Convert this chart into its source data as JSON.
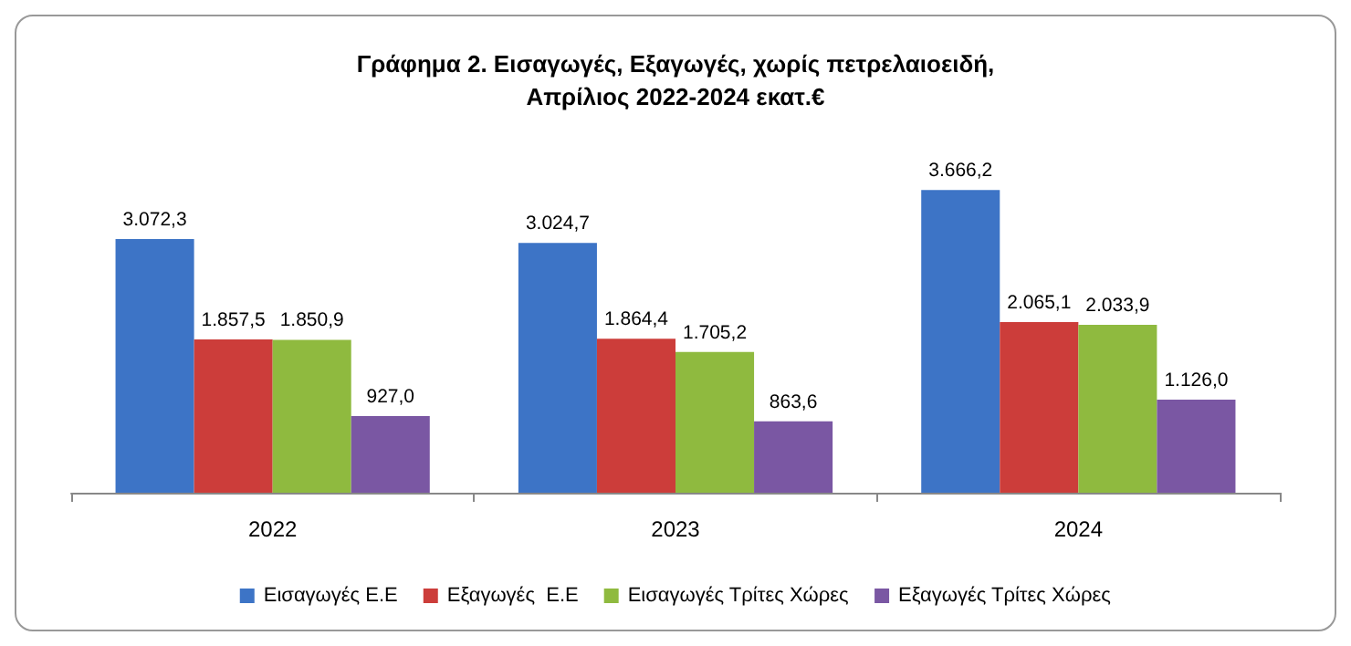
{
  "chart_data": {
    "type": "bar",
    "title": "Γράφημα 2. Εισαγωγές, Εξαγωγές, χωρίς πετρελαιοειδή,\nΑπρίλιος 2022-2024 εκατ.€",
    "categories": [
      "2022",
      "2023",
      "2024"
    ],
    "series": [
      {
        "name": "Εισαγωγές Ε.Ε",
        "color": "#3d74c6",
        "values": [
          3072.3,
          3024.7,
          3666.2
        ],
        "value_labels": [
          "3.072,3",
          "3.024,7",
          "3.666,2"
        ]
      },
      {
        "name": "Εξαγωγές  Ε.Ε",
        "color": "#cc3d3a",
        "values": [
          1857.5,
          1864.4,
          2065.1
        ],
        "value_labels": [
          "1.857,5",
          "1.864,4",
          "2.065,1"
        ]
      },
      {
        "name": "Εισαγωγές Τρίτες Χώρες",
        "color": "#8fba3f",
        "values": [
          1850.9,
          1705.2,
          2033.9
        ],
        "value_labels": [
          "1.850,9",
          "1.705,2",
          "2.033,9"
        ]
      },
      {
        "name": "Εξαγωγές Τρίτες Χώρες",
        "color": "#7a57a3",
        "values": [
          927.0,
          863.6,
          1126.0
        ],
        "value_labels": [
          "927,0",
          "863,6",
          "1.126,0"
        ]
      }
    ],
    "legend": "bottom"
  }
}
